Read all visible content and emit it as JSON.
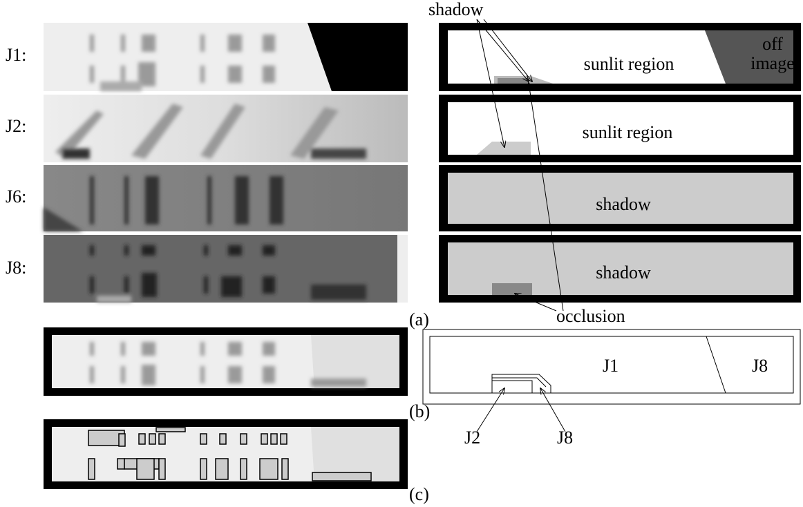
{
  "rows": [
    {
      "label": "J1:"
    },
    {
      "label": "J2:"
    },
    {
      "label": "J6:"
    },
    {
      "label": "J8:"
    }
  ],
  "right_panels": [
    {
      "text": "sunlit region",
      "corner": [
        "off",
        "image"
      ]
    },
    {
      "text": "sunlit region"
    },
    {
      "text": "shadow"
    },
    {
      "text": "shadow"
    }
  ],
  "annotations": {
    "shadow": "shadow",
    "occlusion": "occlusion"
  },
  "panel_labels": [
    "(a)",
    "(b)",
    "(c)"
  ],
  "diagram": {
    "regions": [
      "J1",
      "J8"
    ],
    "callouts": [
      "J2",
      "J8"
    ]
  }
}
